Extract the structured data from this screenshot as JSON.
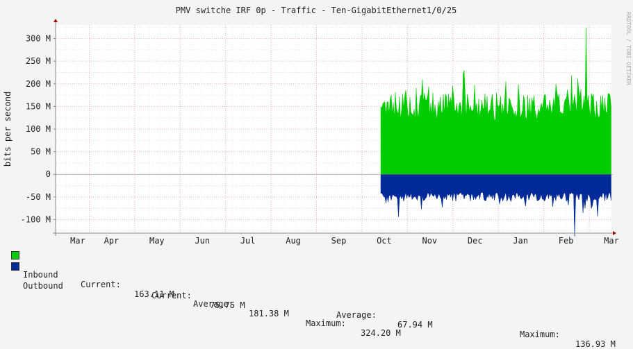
{
  "chart_data": {
    "type": "area",
    "title": "PMV switche IRF 0p - Traffic - Ten-GigabitEthernet1/0/25",
    "ylabel": "bits per second",
    "watermark": "RRDTOOL / TOBI OETIKER",
    "ylim": [
      -130,
      330
    ],
    "y_ticks": [
      {
        "value": 300,
        "label": "300 M"
      },
      {
        "value": 250,
        "label": "250 M"
      },
      {
        "value": 200,
        "label": "200 M"
      },
      {
        "value": 150,
        "label": "150 M"
      },
      {
        "value": 100,
        "label": "100 M"
      },
      {
        "value": 50,
        "label": "50 M"
      },
      {
        "value": 0,
        "label": "0"
      },
      {
        "value": -50,
        "label": "-50 M"
      },
      {
        "value": -100,
        "label": "-100 M"
      }
    ],
    "x_labels": [
      "Mar",
      "Apr",
      "May",
      "Jun",
      "Jul",
      "Aug",
      "Sep",
      "Oct",
      "Nov",
      "Dec",
      "Jan",
      "Feb",
      "Mar"
    ],
    "data_start_fraction": 0.6,
    "series": [
      {
        "name": "Inbound",
        "color": "#00cc00",
        "typical_peak": 180,
        "typical_base": 120,
        "max": 324.2
      },
      {
        "name": "Outbound",
        "color": "#002a97",
        "typical_peak": -60,
        "typical_base": -40,
        "max": -136.93
      }
    ],
    "grid": true
  },
  "legend": [
    {
      "name": "Inbound",
      "color": "#00cc00",
      "current_label": "Current:",
      "current": "163.11 M",
      "average_label": "Average:",
      "average": "181.38 M",
      "maximum_label": "Maximum:",
      "maximum": "324.20 M"
    },
    {
      "name": "Outbound",
      "color": "#002a97",
      "current_label": "Current:",
      "current": "75.75 M",
      "average_label": "Average:",
      "average": "67.94 M",
      "maximum_label": "Maximum:",
      "maximum": "136.93 M"
    }
  ]
}
